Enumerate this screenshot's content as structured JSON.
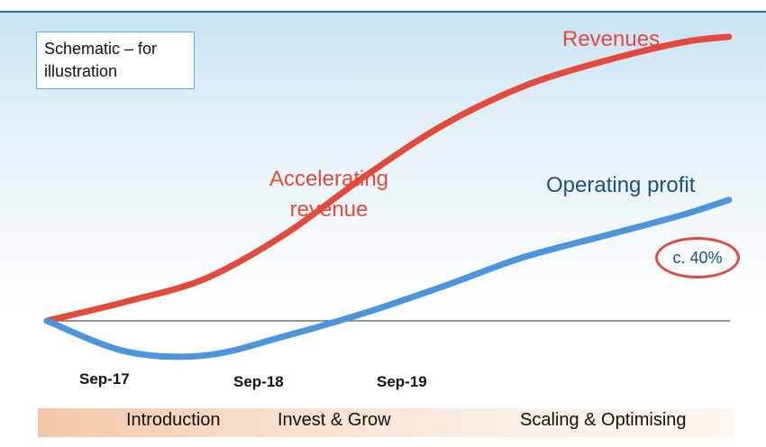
{
  "note": "Schematic – for illustration",
  "chart_data": {
    "type": "line",
    "x": [
      "Sep-17",
      "Sep-18",
      "Sep-19"
    ],
    "series": [
      {
        "name": "Revenues",
        "color": "#e24b3c",
        "points": [
          [
            0,
            0
          ],
          [
            0.5,
            0.1
          ],
          [
            1,
            0.22
          ],
          [
            1.5,
            0.45
          ],
          [
            2,
            0.75
          ],
          [
            2.5,
            1.02
          ],
          [
            3,
            1.22
          ],
          [
            3.5,
            1.35
          ],
          [
            4,
            1.45
          ],
          [
            4.3,
            1.48
          ]
        ]
      },
      {
        "name": "Operating profit",
        "color": "#4a95dc",
        "points": [
          [
            0,
            0
          ],
          [
            0.5,
            -0.16
          ],
          [
            1,
            -0.18
          ],
          [
            1.5,
            -0.08
          ],
          [
            2,
            0.04
          ],
          [
            2.5,
            0.18
          ],
          [
            3,
            0.33
          ],
          [
            3.5,
            0.44
          ],
          [
            4,
            0.55
          ],
          [
            4.3,
            0.63
          ]
        ]
      }
    ],
    "baseline": 0,
    "annotations": {
      "accelerating": "Accelerating revenue",
      "margin": "c. 40%"
    },
    "phases": [
      "Introduction",
      "Invest & Grow",
      "Scaling & Optimising"
    ]
  }
}
